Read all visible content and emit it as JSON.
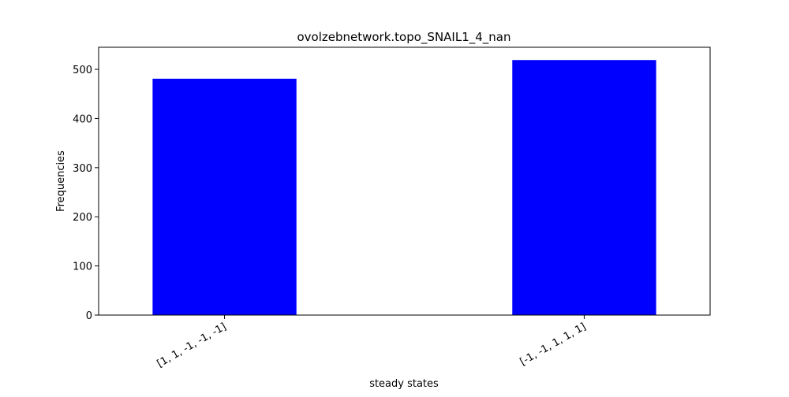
{
  "chart_data": {
    "type": "bar",
    "title": "ovolzebnetwork.topo_SNAIL1_4_nan",
    "xlabel": "steady states",
    "ylabel": "Frequencies",
    "categories": [
      "[1, 1, -1, -1, -1]",
      "[-1, -1, 1, 1, 1]"
    ],
    "values": [
      481,
      519
    ],
    "ylim": [
      0,
      545
    ],
    "yticks": [
      0,
      100,
      200,
      300,
      400,
      500
    ],
    "bar_color": "#0000ff",
    "grid": false,
    "legend": false
  }
}
